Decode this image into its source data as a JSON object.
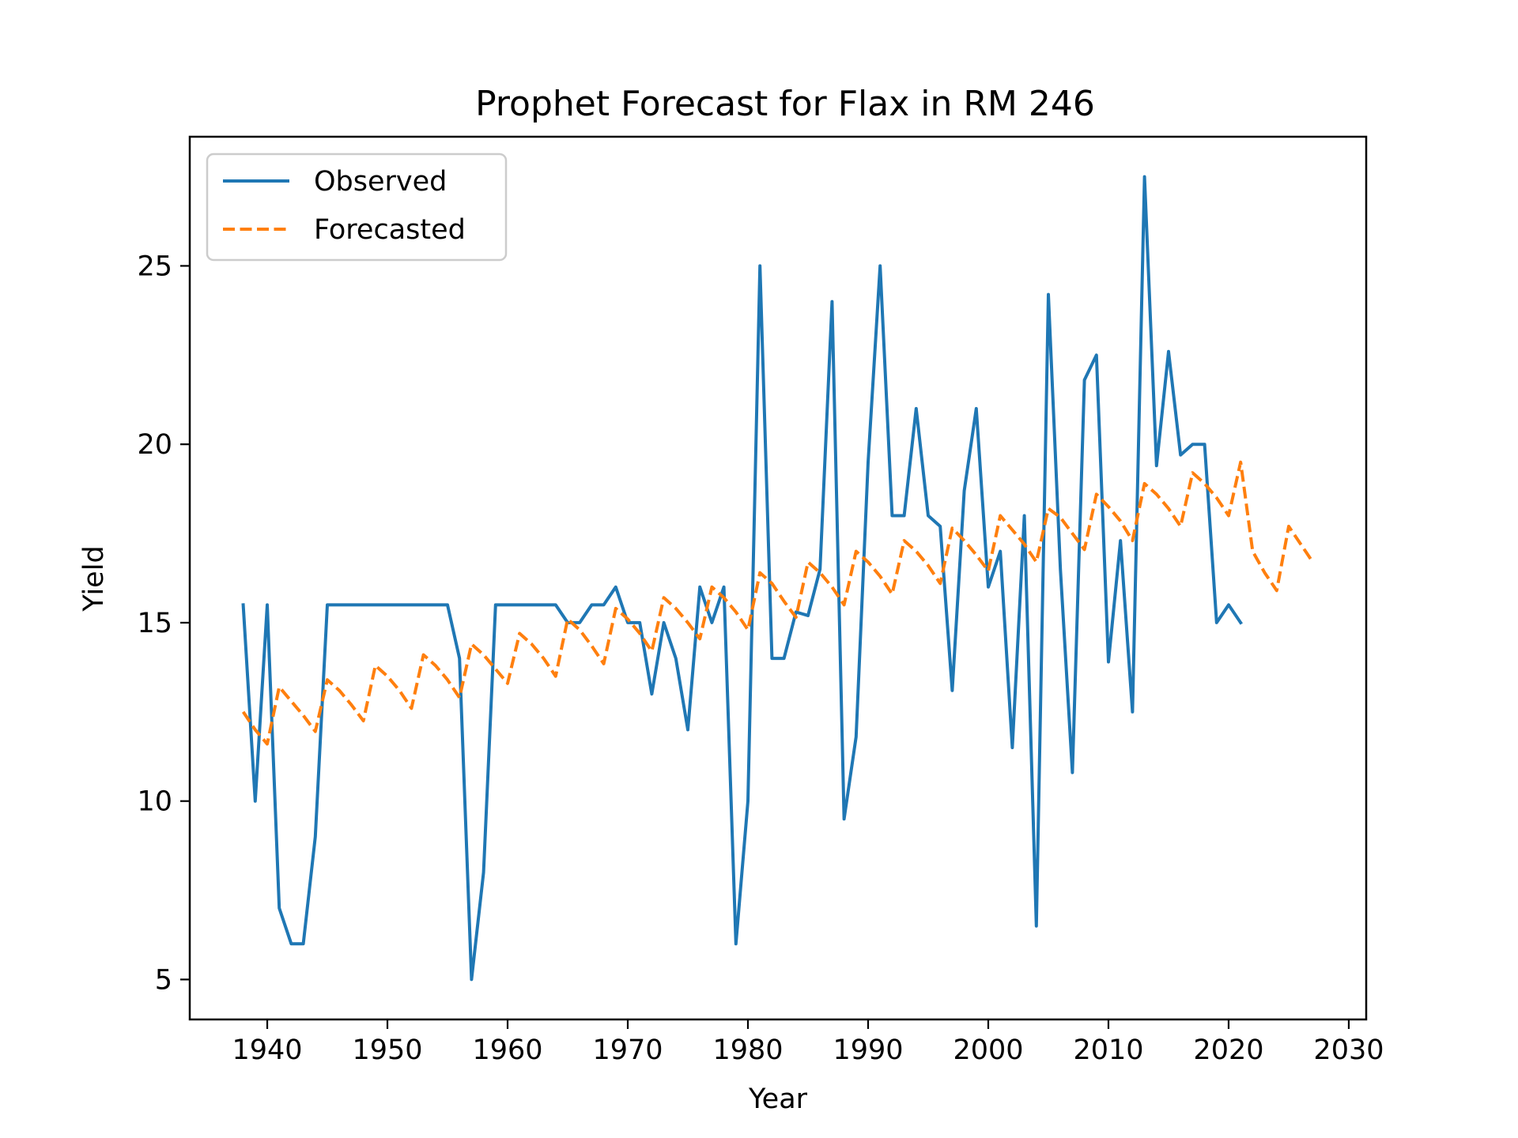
{
  "chart_data": {
    "type": "line",
    "title": "Prophet Forecast for Flax in RM 246",
    "xlabel": "Year",
    "ylabel": "Yield",
    "xlim": [
      1933.55,
      2031.45
    ],
    "ylim": [
      3.88,
      28.62
    ],
    "xticks": [
      1940,
      1950,
      1960,
      1970,
      1980,
      1990,
      2000,
      2010,
      2020,
      2030
    ],
    "yticks": [
      5,
      10,
      15,
      20,
      25
    ],
    "grid": false,
    "legend_position": "top-left",
    "series": [
      {
        "name": "Observed",
        "color": "#1f77b4",
        "style": "solid",
        "points": [
          [
            1938,
            15.5
          ],
          [
            1939,
            10
          ],
          [
            1940,
            15.5
          ],
          [
            1941,
            7
          ],
          [
            1942,
            6
          ],
          [
            1943,
            6
          ],
          [
            1944,
            9
          ],
          [
            1945,
            15.5
          ],
          [
            1946,
            15.5
          ],
          [
            1947,
            15.5
          ],
          [
            1948,
            15.5
          ],
          [
            1949,
            15.5
          ],
          [
            1950,
            15.5
          ],
          [
            1951,
            15.5
          ],
          [
            1952,
            15.5
          ],
          [
            1953,
            15.5
          ],
          [
            1954,
            15.5
          ],
          [
            1955,
            15.5
          ],
          [
            1956,
            14
          ],
          [
            1957,
            5
          ],
          [
            1958,
            8
          ],
          [
            1959,
            15.5
          ],
          [
            1960,
            15.5
          ],
          [
            1961,
            15.5
          ],
          [
            1962,
            15.5
          ],
          [
            1963,
            15.5
          ],
          [
            1964,
            15.5
          ],
          [
            1965,
            15
          ],
          [
            1966,
            15
          ],
          [
            1967,
            15.5
          ],
          [
            1968,
            15.5
          ],
          [
            1969,
            16
          ],
          [
            1970,
            15
          ],
          [
            1971,
            15
          ],
          [
            1972,
            13
          ],
          [
            1973,
            15
          ],
          [
            1974,
            14
          ],
          [
            1975,
            12
          ],
          [
            1976,
            16
          ],
          [
            1977,
            15
          ],
          [
            1978,
            16
          ],
          [
            1979,
            6
          ],
          [
            1980,
            10
          ],
          [
            1981,
            25
          ],
          [
            1982,
            14
          ],
          [
            1983,
            14
          ],
          [
            1984,
            15.3
          ],
          [
            1985,
            15.2
          ],
          [
            1986,
            16.5
          ],
          [
            1987,
            24
          ],
          [
            1988,
            9.5
          ],
          [
            1989,
            11.8
          ],
          [
            1990,
            19.5
          ],
          [
            1991,
            25
          ],
          [
            1992,
            18
          ],
          [
            1993,
            18
          ],
          [
            1994,
            21
          ],
          [
            1995,
            18
          ],
          [
            1996,
            17.7
          ],
          [
            1997,
            13.1
          ],
          [
            1998,
            18.7
          ],
          [
            1999,
            21
          ],
          [
            2000,
            16
          ],
          [
            2001,
            17
          ],
          [
            2002,
            11.5
          ],
          [
            2003,
            18
          ],
          [
            2004,
            6.5
          ],
          [
            2005,
            24.2
          ],
          [
            2006,
            16.5
          ],
          [
            2007,
            10.8
          ],
          [
            2008,
            21.8
          ],
          [
            2009,
            22.5
          ],
          [
            2010,
            13.9
          ],
          [
            2011,
            17.3
          ],
          [
            2012,
            12.5
          ],
          [
            2013,
            27.5
          ],
          [
            2014,
            19.4
          ],
          [
            2015,
            22.6
          ],
          [
            2016,
            19.7
          ],
          [
            2017,
            20
          ],
          [
            2018,
            20
          ],
          [
            2019,
            15
          ],
          [
            2020,
            15.5
          ],
          [
            2021,
            15
          ]
        ]
      },
      {
        "name": "Forecasted",
        "color": "#ff7f0e",
        "style": "dashed",
        "points": [
          [
            1938,
            12.5
          ],
          [
            1939,
            12
          ],
          [
            1940,
            11.6
          ],
          [
            1941,
            13.2
          ],
          [
            1942,
            12.8
          ],
          [
            1943,
            12.4
          ],
          [
            1944,
            11.95
          ],
          [
            1945,
            13.4
          ],
          [
            1946,
            13.1
          ],
          [
            1947,
            12.7
          ],
          [
            1948,
            12.25
          ],
          [
            1949,
            13.8
          ],
          [
            1950,
            13.5
          ],
          [
            1951,
            13.1
          ],
          [
            1952,
            12.6
          ],
          [
            1953,
            14.1
          ],
          [
            1954,
            13.8
          ],
          [
            1955,
            13.4
          ],
          [
            1956,
            12.9
          ],
          [
            1957,
            14.4
          ],
          [
            1958,
            14.1
          ],
          [
            1959,
            13.7
          ],
          [
            1960,
            13.3
          ],
          [
            1961,
            14.7
          ],
          [
            1962,
            14.4
          ],
          [
            1963,
            14
          ],
          [
            1964,
            13.5
          ],
          [
            1965,
            15.1
          ],
          [
            1966,
            14.8
          ],
          [
            1967,
            14.35
          ],
          [
            1968,
            13.85
          ],
          [
            1969,
            15.4
          ],
          [
            1970,
            15.1
          ],
          [
            1971,
            14.7
          ],
          [
            1972,
            14.2
          ],
          [
            1973,
            15.7
          ],
          [
            1974,
            15.4
          ],
          [
            1975,
            15
          ],
          [
            1976,
            14.55
          ],
          [
            1977,
            16
          ],
          [
            1978,
            15.7
          ],
          [
            1979,
            15.3
          ],
          [
            1980,
            14.8
          ],
          [
            1981,
            16.4
          ],
          [
            1982,
            16.1
          ],
          [
            1983,
            15.6
          ],
          [
            1984,
            15.15
          ],
          [
            1985,
            16.7
          ],
          [
            1986,
            16.4
          ],
          [
            1987,
            16
          ],
          [
            1988,
            15.5
          ],
          [
            1989,
            17
          ],
          [
            1990,
            16.7
          ],
          [
            1991,
            16.3
          ],
          [
            1992,
            15.8
          ],
          [
            1993,
            17.3
          ],
          [
            1994,
            17
          ],
          [
            1995,
            16.6
          ],
          [
            1996,
            16.1
          ],
          [
            1997,
            17.65
          ],
          [
            1998,
            17.3
          ],
          [
            1999,
            16.9
          ],
          [
            2000,
            16.45
          ],
          [
            2001,
            18
          ],
          [
            2002,
            17.6
          ],
          [
            2003,
            17.2
          ],
          [
            2004,
            16.7
          ],
          [
            2005,
            18.2
          ],
          [
            2006,
            17.95
          ],
          [
            2007,
            17.5
          ],
          [
            2008,
            17.05
          ],
          [
            2009,
            18.6
          ],
          [
            2010,
            18.25
          ],
          [
            2011,
            17.85
          ],
          [
            2012,
            17.3
          ],
          [
            2013,
            18.9
          ],
          [
            2014,
            18.6
          ],
          [
            2015,
            18.2
          ],
          [
            2016,
            17.7
          ],
          [
            2017,
            19.2
          ],
          [
            2018,
            18.9
          ],
          [
            2019,
            18.5
          ],
          [
            2020,
            18
          ],
          [
            2021,
            19.5
          ],
          [
            2022,
            17
          ],
          [
            2023,
            16.4
          ],
          [
            2024,
            15.9
          ],
          [
            2025,
            17.7
          ],
          [
            2026,
            17.2
          ],
          [
            2027,
            16.7
          ]
        ]
      }
    ]
  }
}
